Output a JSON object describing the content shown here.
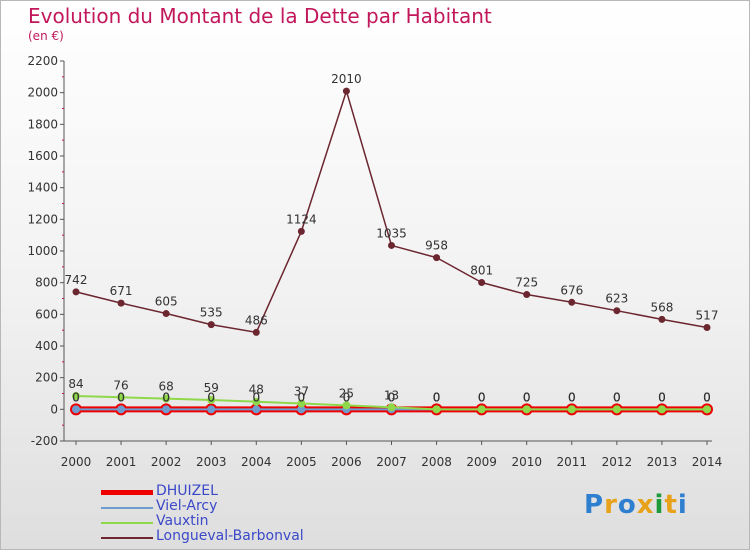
{
  "header": {
    "title": "Evolution du Montant de la Dette par Habitant",
    "subtitle": "(en €)"
  },
  "colors": {
    "title": "#c2185b",
    "DHUIZEL": "#ee0000",
    "Viel-Arcy": "#6f9ccf",
    "Vauxtin": "#8fd84a",
    "Longueval-Barbonval": "#6b2630"
  },
  "logo": {
    "text": "Proxiti"
  },
  "chart_data": {
    "type": "line",
    "title": "Evolution du Montant de la Dette par Habitant",
    "subtitle": "(en €)",
    "x": [
      2000,
      2001,
      2002,
      2003,
      2004,
      2005,
      2006,
      2007,
      2008,
      2009,
      2010,
      2011,
      2012,
      2013,
      2014
    ],
    "ylim": [
      -200,
      2200
    ],
    "yticks": [
      -200,
      0,
      200,
      400,
      600,
      800,
      1000,
      1200,
      1400,
      1600,
      1800,
      2000,
      2200
    ],
    "grid": false,
    "legend_position": "bottom-left",
    "series": [
      {
        "name": "DHUIZEL",
        "values": [
          0,
          0,
          0,
          0,
          0,
          0,
          0,
          0,
          0,
          0,
          0,
          0,
          0,
          0,
          0
        ]
      },
      {
        "name": "Viel-Arcy",
        "values": [
          0,
          0,
          0,
          0,
          0,
          0,
          0,
          0,
          0,
          0,
          0,
          0,
          0,
          0,
          0
        ]
      },
      {
        "name": "Vauxtin",
        "values": [
          84,
          76,
          68,
          59,
          48,
          37,
          25,
          13,
          0,
          0,
          0,
          0,
          0,
          0,
          0
        ]
      },
      {
        "name": "Longueval-Barbonval",
        "values": [
          742,
          671,
          605,
          535,
          486,
          1124,
          2010,
          1035,
          958,
          801,
          725,
          676,
          623,
          568,
          517
        ]
      }
    ]
  }
}
